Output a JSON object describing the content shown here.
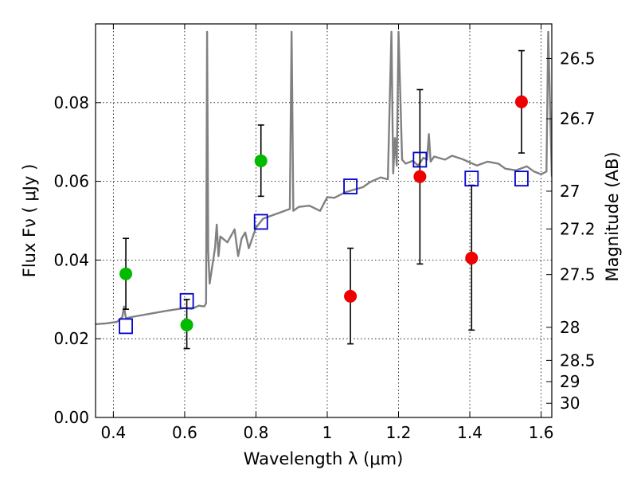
{
  "chart_data": {
    "type": "scatter",
    "xlabel": "Wavelength  λ (μm)",
    "ylabel": "Flux  Fν  ( μJy )",
    "ylabel_right": "Magnitude (AB)",
    "xlim": [
      0.35,
      1.63
    ],
    "ylim": [
      0.0,
      0.1
    ],
    "grid": true,
    "x_ticks": [
      0.4,
      0.6,
      0.8,
      1.0,
      1.2,
      1.4,
      1.6
    ],
    "x_tick_labels": [
      "0.4",
      "0.6",
      "0.8",
      "1",
      "1.2",
      "1.4",
      "1.6"
    ],
    "y_ticks": [
      0.0,
      0.02,
      0.04,
      0.06,
      0.08
    ],
    "y_tick_labels": [
      "0.00",
      "0.02",
      "0.04",
      "0.06",
      "0.08"
    ],
    "right_ticks": [
      {
        "label": "26.5",
        "flux": 0.0912
      },
      {
        "label": "26.7",
        "flux": 0.0759
      },
      {
        "label": "27",
        "flux": 0.0575
      },
      {
        "label": "27.2",
        "flux": 0.0479
      },
      {
        "label": "27.5",
        "flux": 0.0363
      },
      {
        "label": "28",
        "flux": 0.0229
      },
      {
        "label": "28.5",
        "flux": 0.0145
      },
      {
        "label": "29",
        "flux": 0.0091
      },
      {
        "label": "30",
        "flux": 0.0036
      }
    ],
    "series": [
      {
        "color": "#00bb00",
        "marker": "circle",
        "points": [
          {
            "x": 0.435,
            "y": 0.0365,
            "err_low": 0.0275,
            "err_high": 0.0455
          },
          {
            "x": 0.606,
            "y": 0.0235,
            "err_low": 0.0175,
            "err_high": 0.03
          },
          {
            "x": 0.814,
            "y": 0.0652,
            "err_low": 0.0562,
            "err_high": 0.0743
          }
        ]
      },
      {
        "color": "#ee0000",
        "marker": "circle",
        "points": [
          {
            "x": 1.065,
            "y": 0.0308,
            "err_low": 0.0187,
            "err_high": 0.043
          },
          {
            "x": 1.26,
            "y": 0.0612,
            "err_low": 0.039,
            "err_high": 0.0833
          },
          {
            "x": 1.405,
            "y": 0.0405,
            "err_low": 0.0222,
            "err_high": 0.059
          },
          {
            "x": 1.545,
            "y": 0.0802,
            "err_low": 0.0672,
            "err_high": 0.0932
          }
        ]
      },
      {
        "color": "#0000cc",
        "marker": "open-square",
        "points": [
          {
            "x": 0.435,
            "y": 0.0232
          },
          {
            "x": 0.606,
            "y": 0.0296
          },
          {
            "x": 0.814,
            "y": 0.0497
          },
          {
            "x": 1.065,
            "y": 0.0587
          },
          {
            "x": 1.26,
            "y": 0.0655
          },
          {
            "x": 1.405,
            "y": 0.0607
          },
          {
            "x": 1.545,
            "y": 0.0607
          }
        ]
      }
    ],
    "model_spectrum": {
      "color": "#808080",
      "x": [
        0.35,
        0.38,
        0.41,
        0.425,
        0.43,
        0.435,
        0.45,
        0.5,
        0.55,
        0.6,
        0.62,
        0.64,
        0.655,
        0.66,
        0.663,
        0.666,
        0.67,
        0.685,
        0.69,
        0.695,
        0.7,
        0.72,
        0.74,
        0.75,
        0.76,
        0.77,
        0.78,
        0.8,
        0.82,
        0.85,
        0.88,
        0.895,
        0.9,
        0.905,
        0.92,
        0.95,
        0.98,
        1.0,
        1.02,
        1.05,
        1.08,
        1.1,
        1.12,
        1.15,
        1.17,
        1.18,
        1.185,
        1.19,
        1.195,
        1.2,
        1.21,
        1.22,
        1.24,
        1.255,
        1.27,
        1.28,
        1.285,
        1.29,
        1.3,
        1.33,
        1.35,
        1.38,
        1.4,
        1.42,
        1.45,
        1.48,
        1.5,
        1.53,
        1.56,
        1.58,
        1.6,
        1.615,
        1.62,
        1.63
      ],
      "y": [
        0.0237,
        0.0239,
        0.0243,
        0.0255,
        0.0282,
        0.0252,
        0.0255,
        0.0263,
        0.0271,
        0.0278,
        0.0276,
        0.0284,
        0.0282,
        0.029,
        0.098,
        0.042,
        0.034,
        0.043,
        0.049,
        0.041,
        0.046,
        0.0445,
        0.0478,
        0.041,
        0.0455,
        0.047,
        0.043,
        0.0482,
        0.0505,
        0.0515,
        0.0525,
        0.053,
        0.098,
        0.0525,
        0.0535,
        0.0538,
        0.0525,
        0.056,
        0.0558,
        0.0572,
        0.058,
        0.0585,
        0.0598,
        0.061,
        0.0605,
        0.098,
        0.062,
        0.071,
        0.064,
        0.098,
        0.0655,
        0.0645,
        0.0652,
        0.064,
        0.066,
        0.0655,
        0.072,
        0.065,
        0.0663,
        0.0655,
        0.0665,
        0.0656,
        0.0648,
        0.064,
        0.065,
        0.0645,
        0.0632,
        0.0628,
        0.0638,
        0.0625,
        0.0618,
        0.0625,
        0.098,
        0.0612
      ]
    }
  }
}
